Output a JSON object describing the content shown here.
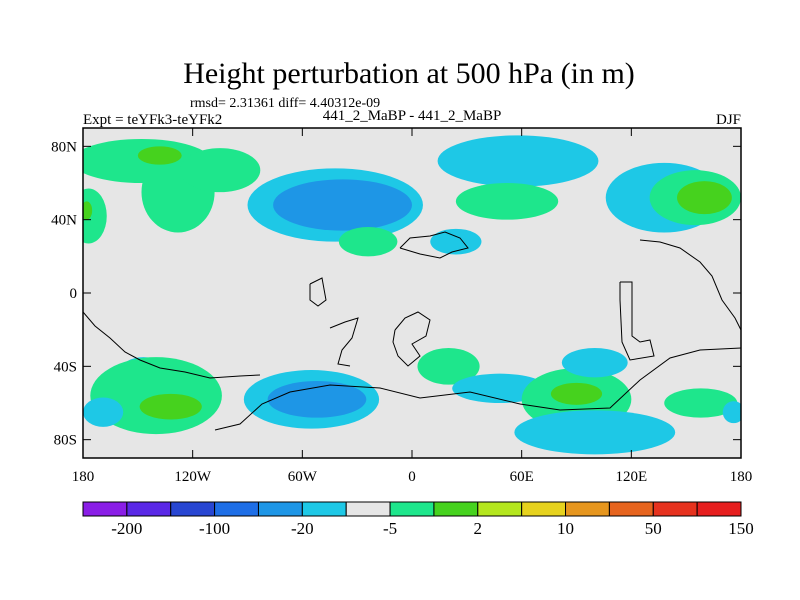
{
  "chart_data": {
    "type": "heatmap",
    "title": "Height perturbation at 500 hPa (in m)",
    "stats_line": "rmsd= 2.31361 diff= 4.40312e-09",
    "left_label": "Expt = teYFk3-teYFk2",
    "center_label": "441_2_MaBP - 441_2_MaBP",
    "right_label": "DJF",
    "x_axis": {
      "range": [
        -180,
        180
      ],
      "ticks": [
        {
          "value": -180,
          "label": "180"
        },
        {
          "value": -120,
          "label": "120W"
        },
        {
          "value": -60,
          "label": "60W"
        },
        {
          "value": 0,
          "label": "0"
        },
        {
          "value": 60,
          "label": "60E"
        },
        {
          "value": 120,
          "label": "120E"
        },
        {
          "value": 180,
          "label": "180"
        }
      ]
    },
    "y_axis": {
      "range": [
        -90,
        90
      ],
      "ticks": [
        {
          "value": 80,
          "label": "80N"
        },
        {
          "value": 40,
          "label": "40N"
        },
        {
          "value": 0,
          "label": "0"
        },
        {
          "value": -40,
          "label": "40S"
        },
        {
          "value": -80,
          "label": "80S"
        }
      ]
    },
    "colorbar": {
      "colors": [
        "#8a1ee6",
        "#5a28e6",
        "#2846d2",
        "#1e6ee6",
        "#1e96e6",
        "#1ec8e6",
        "#e6e6e6",
        "#1ee68c",
        "#46d21e",
        "#b4e61e",
        "#e6d21e",
        "#e6961e",
        "#e6641e",
        "#e6321e",
        "#e61e1e"
      ],
      "tick_labels": [
        "-200",
        "-100",
        "-20",
        "-5",
        "2",
        "10",
        "50",
        "150"
      ]
    },
    "regions": [
      {
        "level": 2,
        "color": "#1ee68c",
        "lon": -148,
        "lat": 72,
        "rx": 38,
        "ry": 12
      },
      {
        "level": 2,
        "color": "#1ee68c",
        "lon": -128,
        "lat": 55,
        "rx": 20,
        "ry": 22
      },
      {
        "level": 2,
        "color": "#1ee68c",
        "lon": -105,
        "lat": 67,
        "rx": 22,
        "ry": 12
      },
      {
        "level": 10,
        "color": "#46d21e",
        "lon": -138,
        "lat": 75,
        "rx": 12,
        "ry": 5
      },
      {
        "level": 2,
        "color": "#1ee68c",
        "lon": -177,
        "lat": 42,
        "rx": 10,
        "ry": 15
      },
      {
        "level": 10,
        "color": "#46d21e",
        "lon": -178,
        "lat": 45,
        "rx": 3,
        "ry": 5
      },
      {
        "level": -5,
        "color": "#1ec8e6",
        "lon": -42,
        "lat": 48,
        "rx": 48,
        "ry": 20
      },
      {
        "level": -20,
        "color": "#1e96e6",
        "lon": -38,
        "lat": 48,
        "rx": 38,
        "ry": 14
      },
      {
        "level": -5,
        "color": "#1ec8e6",
        "lon": 58,
        "lat": 72,
        "rx": 44,
        "ry": 14
      },
      {
        "level": 2,
        "color": "#1ee68c",
        "lon": 52,
        "lat": 50,
        "rx": 28,
        "ry": 10
      },
      {
        "level": 2,
        "color": "#1ee68c",
        "lon": -24,
        "lat": 28,
        "rx": 16,
        "ry": 8
      },
      {
        "level": -5,
        "color": "#1ec8e6",
        "lon": 24,
        "lat": 28,
        "rx": 14,
        "ry": 7
      },
      {
        "level": -5,
        "color": "#1ec8e6",
        "lon": 138,
        "lat": 52,
        "rx": 32,
        "ry": 19
      },
      {
        "level": 2,
        "color": "#1ee68c",
        "lon": 155,
        "lat": 52,
        "rx": 25,
        "ry": 15
      },
      {
        "level": 10,
        "color": "#46d21e",
        "lon": 160,
        "lat": 52,
        "rx": 15,
        "ry": 9
      },
      {
        "level": -5,
        "color": "#1ec8e6",
        "lon": -147,
        "lat": -42,
        "rx": 12,
        "ry": 7
      },
      {
        "level": 2,
        "color": "#1ee68c",
        "lon": -140,
        "lat": -56,
        "rx": 36,
        "ry": 21
      },
      {
        "level": 10,
        "color": "#46d21e",
        "lon": -132,
        "lat": -62,
        "rx": 17,
        "ry": 7
      },
      {
        "level": -5,
        "color": "#1ec8e6",
        "lon": -169,
        "lat": -65,
        "rx": 11,
        "ry": 8
      },
      {
        "level": -5,
        "color": "#1ec8e6",
        "lon": -55,
        "lat": -58,
        "rx": 37,
        "ry": 16
      },
      {
        "level": -20,
        "color": "#1e96e6",
        "lon": -52,
        "lat": -58,
        "rx": 27,
        "ry": 10
      },
      {
        "level": 2,
        "color": "#1ee68c",
        "lon": 20,
        "lat": -40,
        "rx": 17,
        "ry": 10
      },
      {
        "level": -5,
        "color": "#1ec8e6",
        "lon": 48,
        "lat": -52,
        "rx": 26,
        "ry": 8
      },
      {
        "level": 2,
        "color": "#1ee68c",
        "lon": 90,
        "lat": -58,
        "rx": 30,
        "ry": 17
      },
      {
        "level": 10,
        "color": "#46d21e",
        "lon": 90,
        "lat": -55,
        "rx": 14,
        "ry": 6
      },
      {
        "level": -5,
        "color": "#1ec8e6",
        "lon": 100,
        "lat": -76,
        "rx": 44,
        "ry": 12
      },
      {
        "level": -5,
        "color": "#1ec8e6",
        "lon": 100,
        "lat": -38,
        "rx": 18,
        "ry": 8
      },
      {
        "level": 2,
        "color": "#1ee68c",
        "lon": 158,
        "lat": -60,
        "rx": 20,
        "ry": 8
      },
      {
        "level": -5,
        "color": "#1ec8e6",
        "lon": 176,
        "lat": -65,
        "rx": 6,
        "ry": 6
      }
    ]
  }
}
